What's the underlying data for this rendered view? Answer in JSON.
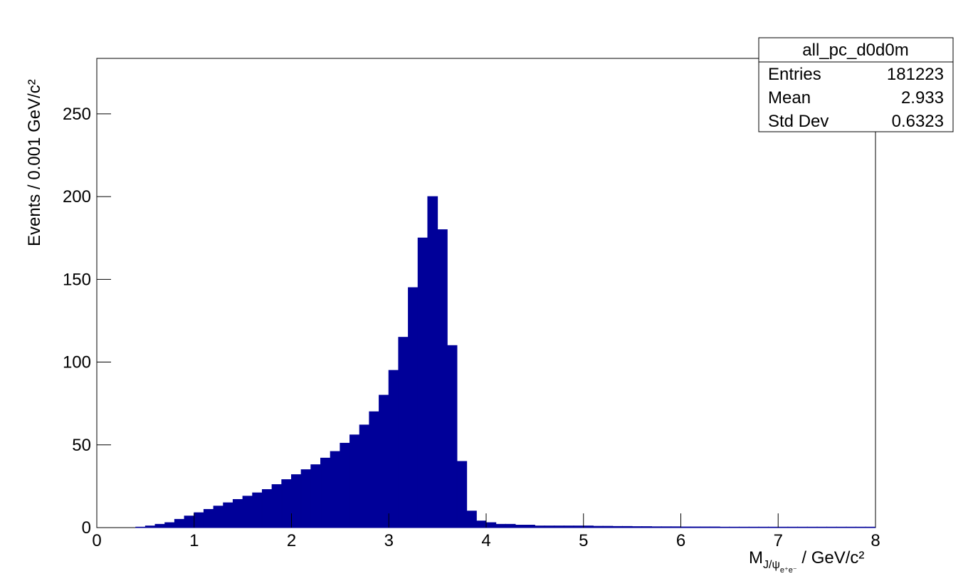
{
  "chart_data": {
    "type": "histogram",
    "y_label": "Events / 0.001 GeV/c²",
    "x_label": {
      "main": "M",
      "sub": "J/ψ",
      "subsub": "e⁺e⁻",
      "rest": " / GeV/c²"
    },
    "color": "#000099",
    "bins": [
      0,
      0.1,
      0.2,
      0.3,
      0.4,
      0.5,
      0.6,
      0.7,
      0.8,
      0.9,
      1,
      1.1,
      1.2,
      1.3,
      1.4,
      1.5,
      1.6,
      1.7,
      1.8,
      1.9,
      2,
      2.1,
      2.2,
      2.3,
      2.4,
      2.5,
      2.6,
      2.7,
      2.8,
      2.9,
      3,
      3.1,
      3.2,
      3.3,
      3.4,
      3.5,
      3.6,
      3.7,
      3.8,
      3.9,
      4,
      4.1,
      4.2,
      4.3,
      4.4,
      4.5,
      4.6,
      4.7,
      4.8,
      4.9,
      5,
      5.1,
      5.2,
      5.3,
      5.4,
      5.5,
      5.6,
      5.7,
      5.8,
      5.9,
      6,
      6.1,
      6.2,
      6.3,
      6.4,
      6.5,
      6.6,
      6.7,
      6.8,
      6.9,
      7,
      7.1,
      7.2,
      7.3,
      7.4,
      7.5,
      7.6,
      7.7,
      7.8,
      7.9,
      8
    ],
    "values": [
      0,
      0,
      0,
      0,
      0.3,
      1,
      2,
      3,
      5,
      7,
      9,
      11,
      13,
      15,
      17,
      19,
      21,
      23,
      26,
      29,
      32,
      35,
      38,
      42,
      46,
      51,
      56,
      62,
      70,
      80,
      95,
      115,
      145,
      175,
      200,
      180,
      110,
      40,
      10,
      4,
      3,
      2,
      2,
      1.5,
      1.5,
      1,
      1,
      1,
      1,
      1,
      1,
      0.8,
      0.8,
      0.7,
      0.7,
      0.6,
      0.6,
      0.5,
      0.5,
      0.5,
      0.4,
      0.4,
      0.4,
      0.4,
      0.3,
      0.3,
      0.3,
      0.3,
      0.3,
      0.3,
      0.3,
      0.3,
      0.3,
      0.3,
      0.3,
      0.3,
      0.3,
      0.3,
      0.3,
      0.3
    ],
    "xlim": [
      0,
      8
    ],
    "xticks": [
      0,
      1,
      2,
      3,
      4,
      5,
      6,
      7,
      8
    ],
    "ylim": [
      0,
      283.5
    ],
    "yticks": [
      0,
      50,
      100,
      150,
      200,
      250
    ],
    "stats": {
      "title": "all_pc_d0d0m",
      "rows": [
        [
          "Entries",
          181223
        ],
        [
          "Mean",
          2.933
        ],
        [
          "Std Dev",
          0.6323
        ]
      ]
    }
  }
}
